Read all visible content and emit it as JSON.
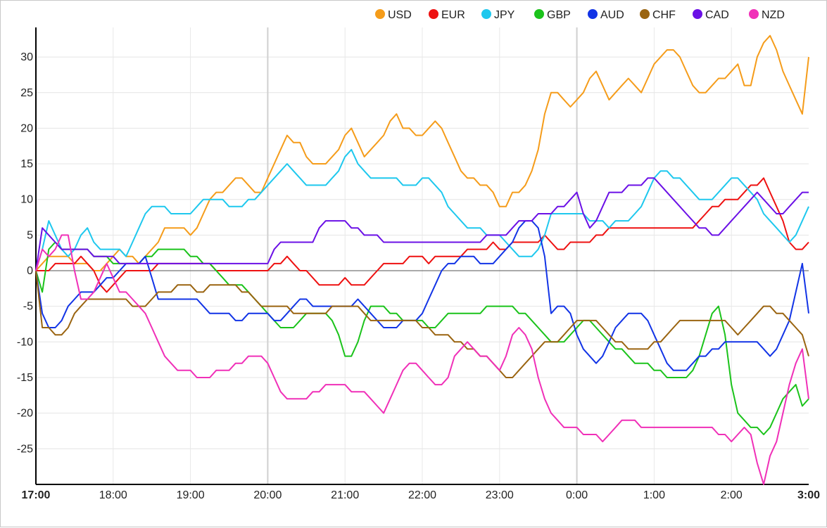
{
  "chart_data": {
    "type": "line",
    "title": "",
    "xlabel": "",
    "ylabel": "",
    "x_ticks": [
      "17:00",
      "18:00",
      "19:00",
      "20:00",
      "21:00",
      "22:00",
      "23:00",
      "0:00",
      "1:00",
      "2:00",
      "3:00"
    ],
    "x_range": [
      0,
      600
    ],
    "x_unit": "minutes after 17:00",
    "x": [
      0,
      5,
      10,
      15,
      20,
      25,
      30,
      35,
      40,
      45,
      50,
      55,
      60,
      65,
      70,
      75,
      80,
      85,
      90,
      95,
      100,
      105,
      110,
      115,
      120,
      125,
      130,
      135,
      140,
      145,
      150,
      155,
      160,
      165,
      170,
      175,
      180,
      185,
      190,
      195,
      200,
      205,
      210,
      215,
      220,
      225,
      230,
      235,
      240,
      245,
      250,
      255,
      260,
      265,
      270,
      275,
      280,
      285,
      290,
      295,
      300,
      305,
      310,
      315,
      320,
      325,
      330,
      335,
      340,
      345,
      350,
      355,
      360,
      365,
      370,
      375,
      380,
      385,
      390,
      395,
      400,
      405,
      410,
      415,
      420,
      425,
      430,
      435,
      440,
      445,
      450,
      455,
      460,
      465,
      470,
      475,
      480,
      485,
      490,
      495,
      500,
      505,
      510,
      515,
      520,
      525,
      530,
      535,
      540,
      545,
      550,
      555,
      560,
      565,
      570,
      575,
      580,
      585,
      590,
      595,
      600
    ],
    "y_ticks": [
      30,
      25,
      20,
      15,
      10,
      5,
      0,
      -5,
      -10,
      -15,
      -20,
      -25
    ],
    "ylim": [
      -30,
      34
    ],
    "grid": true,
    "legend_position": "top-right",
    "series": [
      {
        "name": "USD",
        "color": "#f59c1a",
        "values": [
          0,
          1,
          2,
          2,
          2,
          2,
          1,
          1,
          1,
          0,
          0,
          1,
          2,
          3,
          2,
          2,
          1,
          2,
          3,
          4,
          6,
          6,
          6,
          6,
          5,
          6,
          8,
          10,
          11,
          11,
          12,
          13,
          13,
          12,
          11,
          11,
          13,
          15,
          17,
          19,
          18,
          18,
          16,
          15,
          15,
          15,
          16,
          17,
          19,
          20,
          18,
          16,
          17,
          18,
          19,
          21,
          22,
          20,
          20,
          19,
          19,
          20,
          21,
          20,
          18,
          16,
          14,
          13,
          13,
          12,
          12,
          11,
          9,
          9,
          11,
          11,
          12,
          14,
          17,
          22,
          25,
          25,
          24,
          23,
          24,
          25,
          27,
          28,
          26,
          24,
          25,
          26,
          27,
          26,
          25,
          27,
          29,
          30,
          31,
          31,
          30,
          28,
          26,
          25,
          25,
          26,
          27,
          27,
          28,
          29,
          26,
          26,
          30,
          32,
          33,
          31,
          28,
          26,
          24,
          22,
          30
        ]
      },
      {
        "name": "EUR",
        "color": "#ee1111",
        "values": [
          0,
          0,
          0,
          1,
          1,
          1,
          1,
          2,
          1,
          0,
          -2,
          -3,
          -2,
          -1,
          0,
          0,
          0,
          0,
          0,
          1,
          1,
          1,
          1,
          1,
          1,
          1,
          1,
          1,
          0,
          0,
          0,
          0,
          0,
          0,
          0,
          0,
          0,
          1,
          1,
          2,
          1,
          0,
          0,
          -1,
          -2,
          -2,
          -2,
          -2,
          -1,
          -2,
          -2,
          -2,
          -1,
          0,
          1,
          1,
          1,
          1,
          2,
          2,
          2,
          1,
          2,
          2,
          2,
          2,
          2,
          3,
          3,
          3,
          3,
          4,
          3,
          3,
          4,
          4,
          4,
          4,
          4,
          5,
          4,
          3,
          3,
          4,
          4,
          4,
          4,
          5,
          5,
          6,
          6,
          6,
          6,
          6,
          6,
          6,
          6,
          6,
          6,
          6,
          6,
          6,
          6,
          7,
          8,
          9,
          9,
          10,
          10,
          10,
          11,
          12,
          12,
          13,
          11,
          9,
          7,
          4,
          3,
          3,
          4
        ]
      },
      {
        "name": "JPY",
        "color": "#1ec8ee",
        "values": [
          0,
          3,
          7,
          5,
          3,
          2,
          3,
          5,
          6,
          4,
          3,
          3,
          3,
          3,
          2,
          4,
          6,
          8,
          9,
          9,
          9,
          8,
          8,
          8,
          8,
          9,
          10,
          10,
          10,
          10,
          9,
          9,
          9,
          10,
          10,
          11,
          12,
          13,
          14,
          15,
          14,
          13,
          12,
          12,
          12,
          12,
          13,
          14,
          16,
          17,
          15,
          14,
          13,
          13,
          13,
          13,
          13,
          12,
          12,
          12,
          13,
          13,
          12,
          11,
          9,
          8,
          7,
          6,
          6,
          6,
          5,
          5,
          5,
          4,
          3,
          2,
          2,
          2,
          3,
          5,
          8,
          8,
          8,
          8,
          8,
          8,
          7,
          7,
          7,
          6,
          7,
          7,
          7,
          8,
          9,
          11,
          13,
          14,
          14,
          13,
          13,
          12,
          11,
          10,
          10,
          10,
          11,
          12,
          13,
          13,
          12,
          11,
          10,
          8,
          7,
          6,
          5,
          4,
          5,
          7,
          9
        ]
      },
      {
        "name": "GBP",
        "color": "#1bc31b",
        "values": [
          0,
          -3,
          3,
          4,
          3,
          3,
          3,
          3,
          3,
          2,
          2,
          2,
          1,
          1,
          1,
          1,
          1,
          2,
          2,
          3,
          3,
          3,
          3,
          3,
          2,
          2,
          1,
          1,
          0,
          -1,
          -2,
          -2,
          -2,
          -3,
          -4,
          -5,
          -6,
          -7,
          -8,
          -8,
          -8,
          -7,
          -6,
          -6,
          -6,
          -6,
          -7,
          -9,
          -12,
          -12,
          -10,
          -7,
          -5,
          -5,
          -5,
          -6,
          -6,
          -7,
          -7,
          -7,
          -7,
          -8,
          -8,
          -7,
          -6,
          -6,
          -6,
          -6,
          -6,
          -6,
          -5,
          -5,
          -5,
          -5,
          -5,
          -6,
          -6,
          -7,
          -8,
          -9,
          -10,
          -10,
          -10,
          -9,
          -8,
          -7,
          -7,
          -8,
          -9,
          -10,
          -11,
          -11,
          -12,
          -13,
          -13,
          -13,
          -14,
          -14,
          -15,
          -15,
          -15,
          -15,
          -14,
          -12,
          -9,
          -6,
          -5,
          -9,
          -16,
          -20,
          -21,
          -22,
          -22,
          -23,
          -22,
          -20,
          -18,
          -17,
          -16,
          -19,
          -18
        ]
      },
      {
        "name": "AUD",
        "color": "#1234e6",
        "values": [
          0,
          -6,
          -8,
          -8,
          -7,
          -5,
          -4,
          -3,
          -3,
          -3,
          -2,
          -1,
          -1,
          0,
          1,
          1,
          1,
          2,
          -1,
          -4,
          -4,
          -4,
          -4,
          -4,
          -4,
          -4,
          -5,
          -6,
          -6,
          -6,
          -6,
          -7,
          -7,
          -6,
          -6,
          -6,
          -6,
          -7,
          -7,
          -6,
          -5,
          -4,
          -4,
          -5,
          -5,
          -5,
          -5,
          -5,
          -5,
          -5,
          -4,
          -5,
          -6,
          -7,
          -8,
          -8,
          -8,
          -7,
          -7,
          -7,
          -6,
          -4,
          -2,
          0,
          1,
          1,
          2,
          2,
          2,
          1,
          1,
          1,
          2,
          3,
          4,
          6,
          7,
          7,
          6,
          2,
          -6,
          -5,
          -5,
          -6,
          -9,
          -11,
          -12,
          -13,
          -12,
          -10,
          -8,
          -7,
          -6,
          -6,
          -6,
          -7,
          -9,
          -11,
          -13,
          -14,
          -14,
          -14,
          -13,
          -12,
          -12,
          -11,
          -11,
          -10,
          -10,
          -10,
          -10,
          -10,
          -10,
          -11,
          -12,
          -11,
          -9,
          -7,
          -3,
          1,
          -6
        ]
      },
      {
        "name": "CHF",
        "color": "#9a6410",
        "values": [
          0,
          -8,
          -8,
          -9,
          -9,
          -8,
          -6,
          -5,
          -4,
          -4,
          -4,
          -4,
          -4,
          -4,
          -4,
          -5,
          -5,
          -5,
          -4,
          -3,
          -3,
          -3,
          -2,
          -2,
          -2,
          -3,
          -3,
          -2,
          -2,
          -2,
          -2,
          -2,
          -3,
          -3,
          -4,
          -5,
          -5,
          -5,
          -5,
          -5,
          -6,
          -6,
          -6,
          -6,
          -6,
          -6,
          -5,
          -5,
          -5,
          -5,
          -5,
          -6,
          -7,
          -7,
          -7,
          -7,
          -7,
          -7,
          -7,
          -7,
          -8,
          -8,
          -9,
          -9,
          -9,
          -10,
          -10,
          -11,
          -11,
          -12,
          -12,
          -13,
          -14,
          -15,
          -15,
          -14,
          -13,
          -12,
          -11,
          -10,
          -10,
          -10,
          -9,
          -8,
          -7,
          -7,
          -7,
          -7,
          -8,
          -9,
          -10,
          -10,
          -11,
          -11,
          -11,
          -11,
          -10,
          -10,
          -9,
          -8,
          -7,
          -7,
          -7,
          -7,
          -7,
          -7,
          -7,
          -7,
          -8,
          -9,
          -8,
          -7,
          -6,
          -5,
          -5,
          -6,
          -6,
          -7,
          -8,
          -9,
          -12
        ]
      },
      {
        "name": "CAD",
        "color": "#6b10e6",
        "values": [
          0,
          6,
          5,
          4,
          3,
          3,
          3,
          3,
          3,
          2,
          2,
          2,
          2,
          1,
          1,
          1,
          1,
          1,
          1,
          1,
          1,
          1,
          1,
          1,
          1,
          1,
          1,
          1,
          1,
          1,
          1,
          1,
          1,
          1,
          1,
          1,
          1,
          3,
          4,
          4,
          4,
          4,
          4,
          4,
          6,
          7,
          7,
          7,
          7,
          6,
          6,
          5,
          5,
          5,
          4,
          4,
          4,
          4,
          4,
          4,
          4,
          4,
          4,
          4,
          4,
          4,
          4,
          4,
          4,
          4,
          5,
          5,
          5,
          5,
          6,
          7,
          7,
          7,
          8,
          8,
          8,
          9,
          9,
          10,
          11,
          8,
          6,
          7,
          9,
          11,
          11,
          11,
          12,
          12,
          12,
          13,
          13,
          12,
          11,
          10,
          9,
          8,
          7,
          6,
          6,
          5,
          5,
          6,
          7,
          8,
          9,
          10,
          11,
          10,
          9,
          8,
          8,
          9,
          10,
          11,
          11
        ]
      },
      {
        "name": "NZD",
        "color": "#f030b8",
        "values": [
          0,
          3,
          2,
          3,
          5,
          5,
          0,
          -4,
          -4,
          -3,
          -1,
          1,
          -1,
          -3,
          -3,
          -4,
          -5,
          -6,
          -8,
          -10,
          -12,
          -13,
          -14,
          -14,
          -14,
          -15,
          -15,
          -15,
          -14,
          -14,
          -14,
          -13,
          -13,
          -12,
          -12,
          -12,
          -13,
          -15,
          -17,
          -18,
          -18,
          -18,
          -18,
          -17,
          -17,
          -16,
          -16,
          -16,
          -16,
          -17,
          -17,
          -17,
          -18,
          -19,
          -20,
          -18,
          -16,
          -14,
          -13,
          -13,
          -14,
          -15,
          -16,
          -16,
          -15,
          -12,
          -11,
          -10,
          -11,
          -12,
          -12,
          -13,
          -14,
          -12,
          -9,
          -8,
          -9,
          -11,
          -15,
          -18,
          -20,
          -21,
          -22,
          -22,
          -22,
          -23,
          -23,
          -23,
          -24,
          -23,
          -22,
          -21,
          -21,
          -21,
          -22,
          -22,
          -22,
          -22,
          -22,
          -22,
          -22,
          -22,
          -22,
          -22,
          -22,
          -22,
          -23,
          -23,
          -24,
          -23,
          -22,
          -23,
          -27,
          -30,
          -26,
          -24,
          -20,
          -16,
          -13,
          -11,
          -18
        ]
      }
    ]
  }
}
